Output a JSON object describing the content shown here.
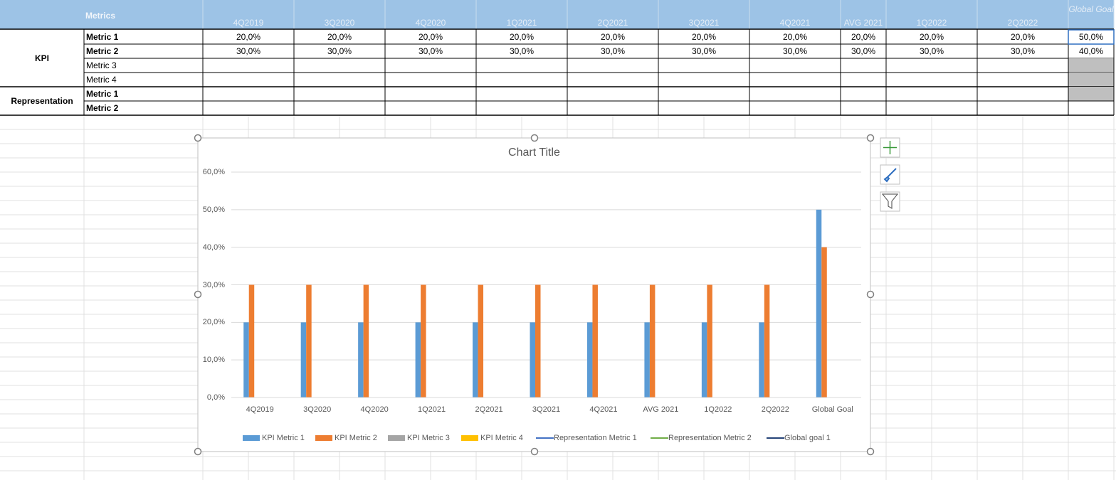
{
  "table": {
    "header": {
      "title": "Metrics",
      "columns": [
        "4Q2019",
        "3Q2020",
        "4Q2020",
        "1Q2021",
        "2Q2021",
        "3Q2021",
        "4Q2021",
        "AVG 2021",
        "1Q2022",
        "2Q2022",
        "Global Goal"
      ]
    },
    "groups": [
      {
        "label": "KPI",
        "rows": [
          {
            "label": "Metric 1",
            "cells": [
              "20,0%",
              "20,0%",
              "20,0%",
              "20,0%",
              "20,0%",
              "20,0%",
              "20,0%",
              "20,0%",
              "20,0%",
              "20,0%",
              "50,0%"
            ]
          },
          {
            "label": "Metric 2",
            "cells": [
              "30,0%",
              "30,0%",
              "30,0%",
              "30,0%",
              "30,0%",
              "30,0%",
              "30,0%",
              "30,0%",
              "30,0%",
              "30,0%",
              "40,0%"
            ]
          },
          {
            "label": "Metric 3"
          },
          {
            "label": "Metric 4"
          }
        ]
      },
      {
        "label": "Representation",
        "rows": [
          {
            "label": "Metric 1"
          },
          {
            "label": "Metric 2"
          }
        ]
      }
    ]
  },
  "chart_data": {
    "type": "bar",
    "title": "Chart Title",
    "categories": [
      "4Q2019",
      "3Q2020",
      "4Q2020",
      "1Q2021",
      "2Q2021",
      "3Q2021",
      "4Q2021",
      "AVG 2021",
      "1Q2022",
      "2Q2022",
      "Global Goal"
    ],
    "series": [
      {
        "name": "KPI Metric 1",
        "type": "bar",
        "color": "#5b9bd5",
        "values": [
          20,
          20,
          20,
          20,
          20,
          20,
          20,
          20,
          20,
          20,
          50
        ]
      },
      {
        "name": "KPI Metric 2",
        "type": "bar",
        "color": "#ed7d31",
        "values": [
          30,
          30,
          30,
          30,
          30,
          30,
          30,
          30,
          30,
          30,
          40
        ]
      },
      {
        "name": "KPI Metric 3",
        "type": "bar",
        "color": "#a5a5a5",
        "values": [
          null,
          null,
          null,
          null,
          null,
          null,
          null,
          null,
          null,
          null,
          null
        ]
      },
      {
        "name": "KPI Metric 4",
        "type": "bar",
        "color": "#ffc000",
        "values": [
          null,
          null,
          null,
          null,
          null,
          null,
          null,
          null,
          null,
          null,
          null
        ]
      },
      {
        "name": "Representation Metric 1",
        "type": "line",
        "color": "#4472c4",
        "values": [
          null,
          null,
          null,
          null,
          null,
          null,
          null,
          null,
          null,
          null,
          null
        ]
      },
      {
        "name": "Representation Metric 2",
        "type": "line",
        "color": "#70ad47",
        "values": [
          null,
          null,
          null,
          null,
          null,
          null,
          null,
          null,
          null,
          null,
          null
        ]
      },
      {
        "name": "Global goal 1",
        "type": "line",
        "color": "#264478",
        "values": [
          null,
          null,
          null,
          null,
          null,
          null,
          null,
          null,
          null,
          null,
          null
        ]
      }
    ],
    "ylim": [
      0,
      60
    ],
    "yticks": [
      {
        "value": 0,
        "label": "0,0%"
      },
      {
        "value": 10,
        "label": "10,0%"
      },
      {
        "value": 20,
        "label": "20,0%"
      },
      {
        "value": 30,
        "label": "30,0%"
      },
      {
        "value": 40,
        "label": "40,0%"
      },
      {
        "value": 50,
        "label": "50,0%"
      },
      {
        "value": 60,
        "label": "60,0%"
      }
    ],
    "grid": true,
    "legend": "bottom"
  }
}
